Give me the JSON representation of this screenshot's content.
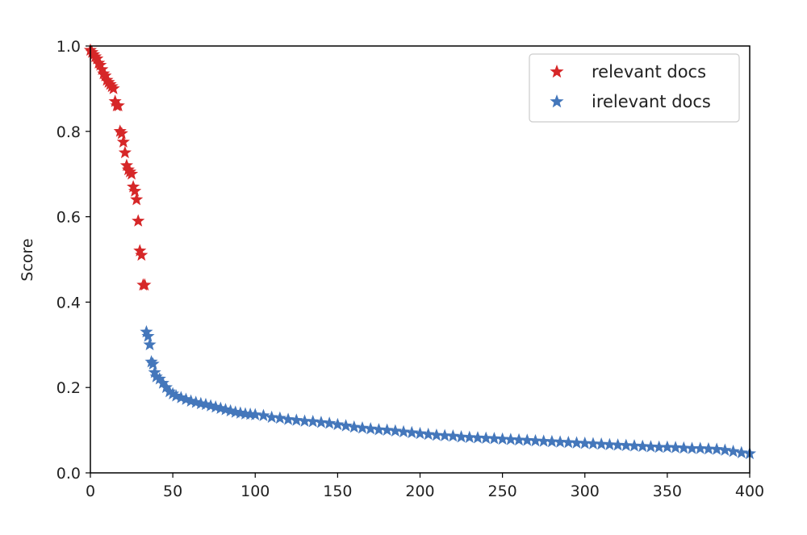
{
  "chart_data": {
    "type": "scatter",
    "title": "",
    "xlabel": "",
    "ylabel": "Score",
    "xlim": [
      0,
      400
    ],
    "ylim": [
      0.0,
      1.0
    ],
    "xticks": [
      0,
      50,
      100,
      150,
      200,
      250,
      300,
      350,
      400
    ],
    "yticks": [
      0.0,
      0.2,
      0.4,
      0.6,
      0.8,
      1.0
    ],
    "ytick_labels": [
      "0.0",
      "0.2",
      "0.4",
      "0.6",
      "0.8",
      "1.0"
    ],
    "grid": false,
    "legend_position": "top-right",
    "marker": "star",
    "series": [
      {
        "name": "relevant docs",
        "color": "#d62728",
        "x": [
          0,
          1,
          2,
          3,
          4,
          5,
          6,
          7,
          8,
          9,
          10,
          11,
          12,
          13,
          14,
          15,
          16,
          17,
          18,
          19,
          20,
          21,
          22,
          23,
          24,
          25,
          26,
          27,
          28,
          29,
          30,
          31,
          32,
          33
        ],
        "y": [
          0.99,
          0.985,
          0.98,
          0.975,
          0.97,
          0.96,
          0.955,
          0.945,
          0.935,
          0.93,
          0.92,
          0.915,
          0.91,
          0.905,
          0.9,
          0.87,
          0.86,
          0.86,
          0.8,
          0.795,
          0.775,
          0.75,
          0.72,
          0.71,
          0.705,
          0.7,
          0.67,
          0.66,
          0.64,
          0.59,
          0.52,
          0.51,
          0.44,
          0.44
        ]
      },
      {
        "name": "irelevant docs",
        "color": "#4477bb",
        "x": [
          34,
          35,
          36,
          37,
          38,
          39,
          40,
          42,
          44,
          46,
          48,
          50,
          52,
          55,
          58,
          61,
          64,
          67,
          70,
          73,
          76,
          79,
          82,
          85,
          88,
          91,
          94,
          97,
          100,
          105,
          110,
          115,
          120,
          125,
          130,
          135,
          140,
          145,
          150,
          155,
          160,
          165,
          170,
          175,
          180,
          185,
          190,
          195,
          200,
          205,
          210,
          215,
          220,
          225,
          230,
          235,
          240,
          245,
          250,
          255,
          260,
          265,
          270,
          275,
          280,
          285,
          290,
          295,
          300,
          305,
          310,
          315,
          320,
          325,
          330,
          335,
          340,
          345,
          350,
          355,
          360,
          365,
          370,
          375,
          380,
          385,
          390,
          395,
          400
        ],
        "y": [
          0.33,
          0.32,
          0.3,
          0.26,
          0.255,
          0.235,
          0.225,
          0.22,
          0.21,
          0.2,
          0.19,
          0.185,
          0.18,
          0.176,
          0.172,
          0.168,
          0.165,
          0.162,
          0.16,
          0.157,
          0.154,
          0.151,
          0.148,
          0.145,
          0.142,
          0.14,
          0.138,
          0.137,
          0.136,
          0.134,
          0.13,
          0.128,
          0.125,
          0.123,
          0.121,
          0.12,
          0.118,
          0.116,
          0.113,
          0.11,
          0.107,
          0.105,
          0.103,
          0.101,
          0.1,
          0.098,
          0.096,
          0.094,
          0.092,
          0.09,
          0.088,
          0.087,
          0.086,
          0.084,
          0.083,
          0.082,
          0.081,
          0.08,
          0.079,
          0.078,
          0.077,
          0.076,
          0.075,
          0.074,
          0.073,
          0.072,
          0.071,
          0.07,
          0.069,
          0.068,
          0.067,
          0.066,
          0.065,
          0.064,
          0.063,
          0.062,
          0.061,
          0.06,
          0.06,
          0.059,
          0.058,
          0.057,
          0.057,
          0.056,
          0.055,
          0.053,
          0.05,
          0.047,
          0.045
        ]
      }
    ]
  }
}
